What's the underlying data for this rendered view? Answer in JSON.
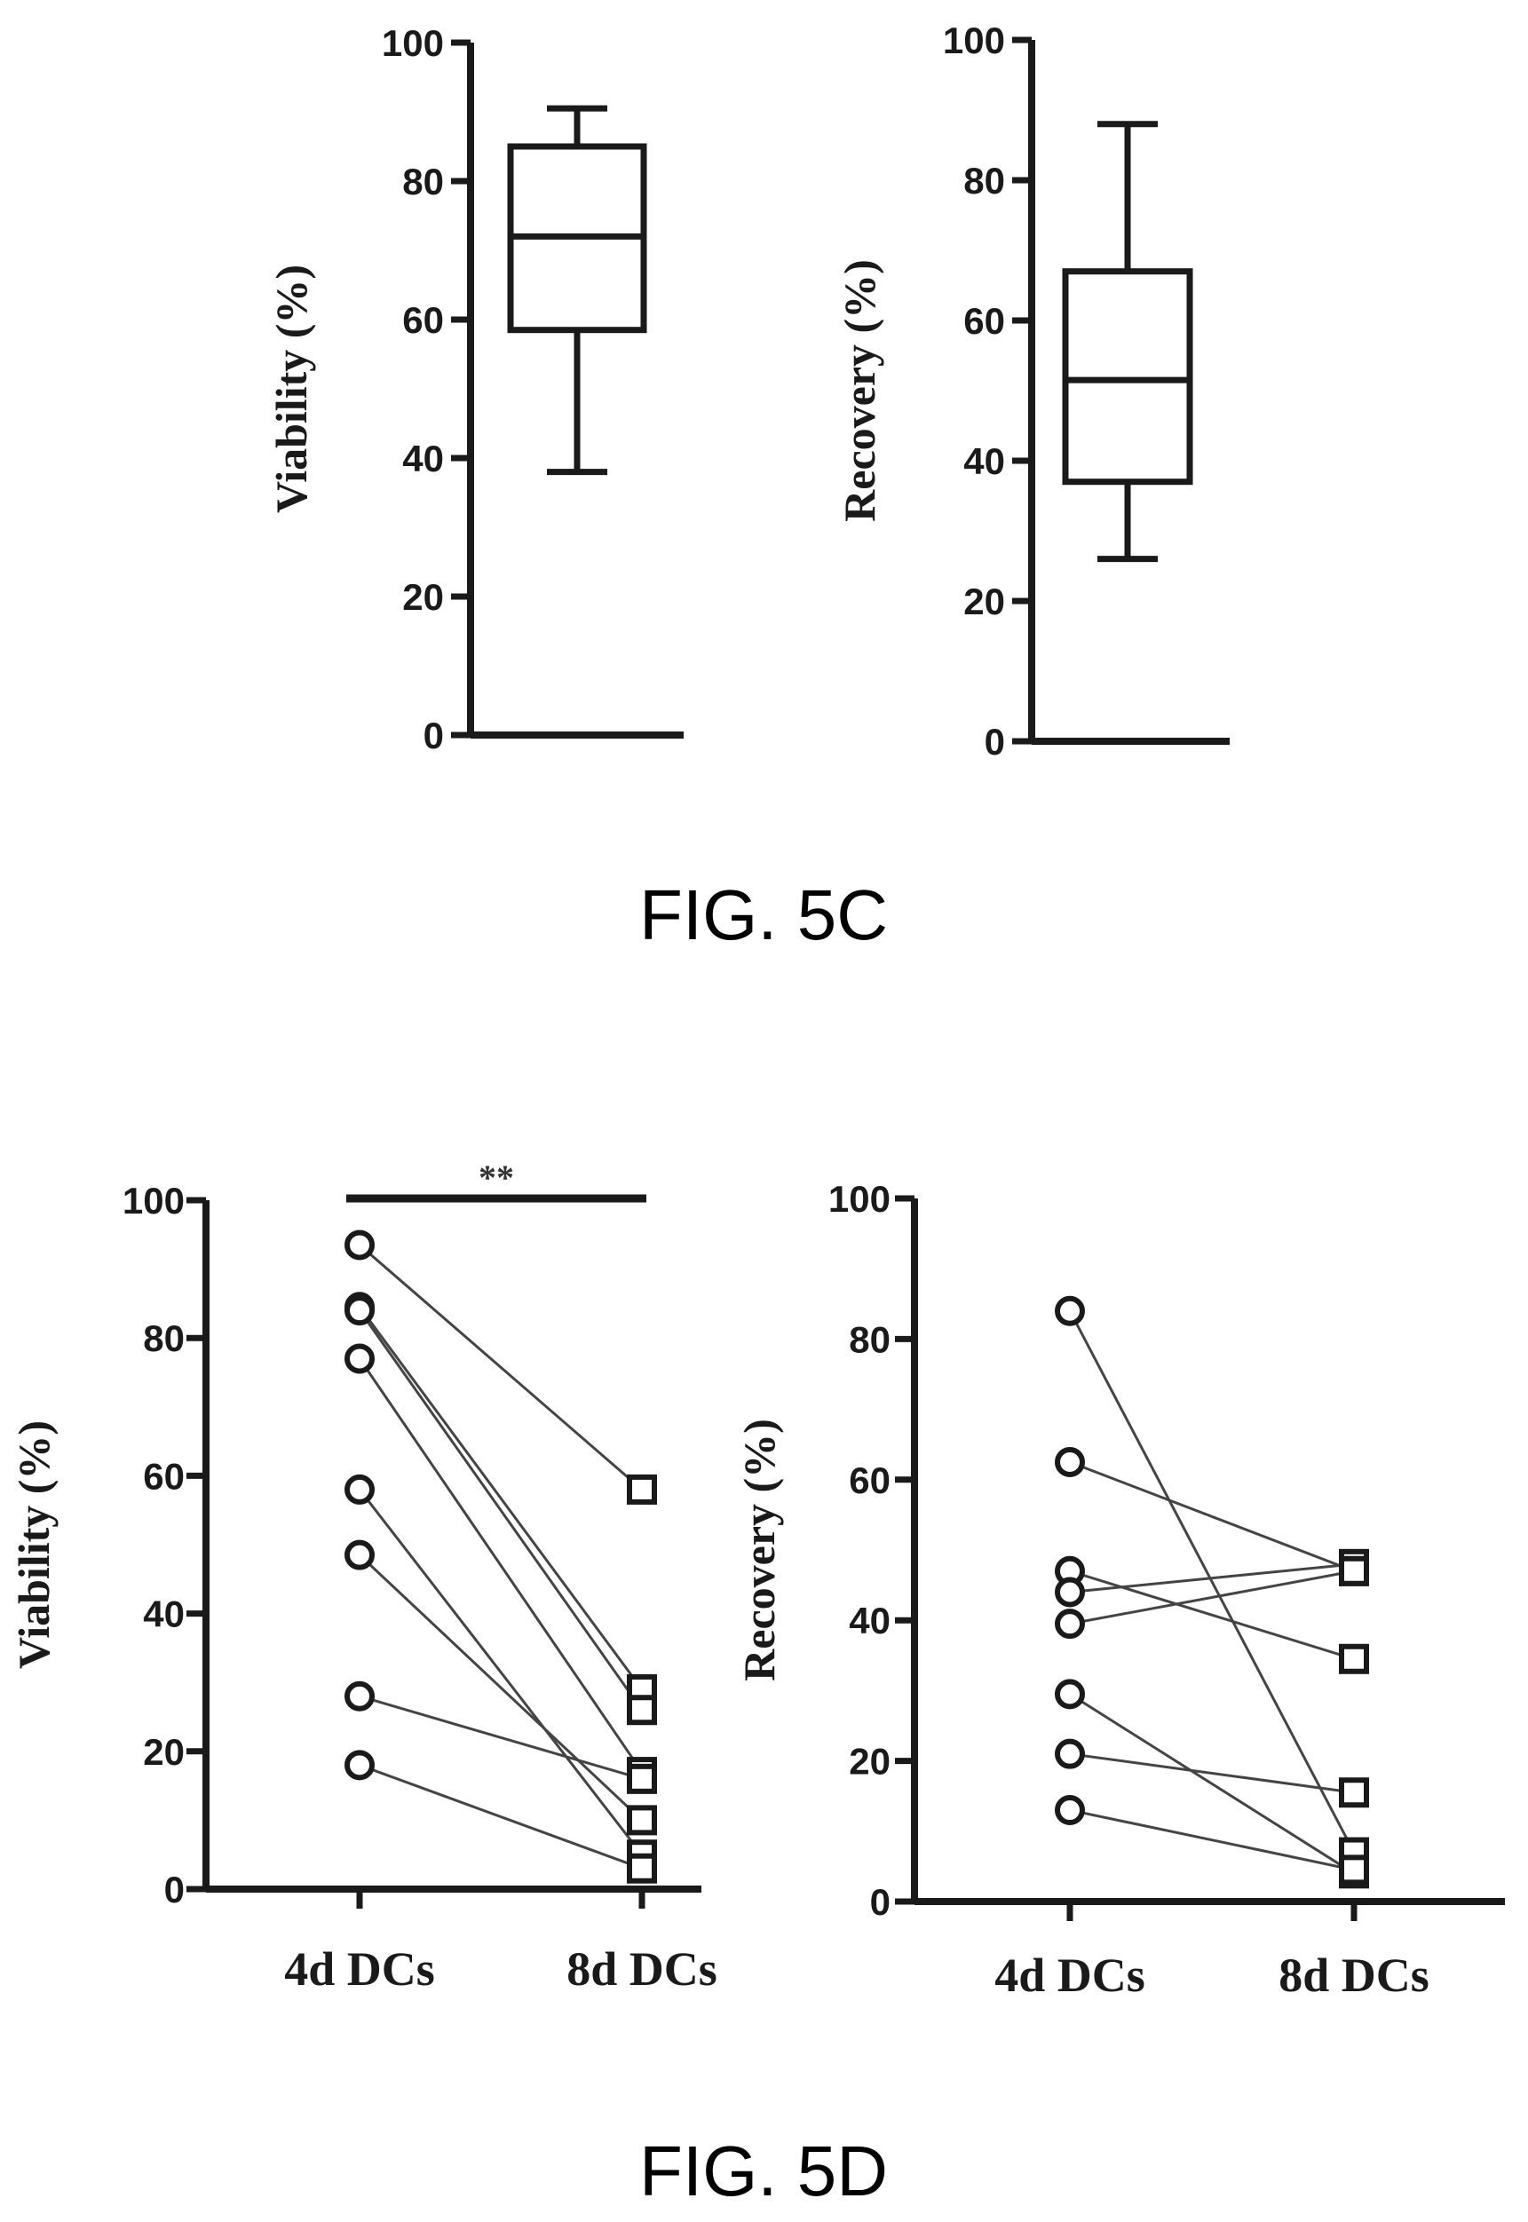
{
  "figures": [
    {
      "caption": "FIG. 5C"
    },
    {
      "caption": "FIG. 5D"
    }
  ],
  "colors": {
    "ink": "#1a1a1a",
    "line": "#444444",
    "background": "#ffffff"
  },
  "chart_data": [
    {
      "type": "box",
      "figure": "FIG. 5C",
      "title": "",
      "xlabel": "",
      "ylabel": "Viability (%)",
      "ylim": [
        0,
        100
      ],
      "yticks": [
        0,
        20,
        40,
        60,
        80,
        100
      ],
      "box": {
        "whisker_low": 38,
        "q1": 58.5,
        "median": 72,
        "q3": 85,
        "whisker_high": 90.5
      }
    },
    {
      "type": "box",
      "figure": "FIG. 5C",
      "title": "",
      "xlabel": "",
      "ylabel": "Recovery (%)",
      "ylim": [
        0,
        100
      ],
      "yticks": [
        0,
        20,
        40,
        60,
        80,
        100
      ],
      "box": {
        "whisker_low": 26,
        "q1": 37,
        "median": 51.5,
        "q3": 67,
        "whisker_high": 88
      }
    },
    {
      "type": "scatter",
      "figure": "FIG. 5D",
      "title": "",
      "xlabel": "",
      "ylabel": "Viability (%)",
      "ylim": [
        0,
        100
      ],
      "yticks": [
        0,
        20,
        40,
        60,
        80,
        100
      ],
      "categories": [
        "4d DCs",
        "8d DCs"
      ],
      "significance": "**",
      "pairs": [
        [
          93.5,
          58
        ],
        [
          84.5,
          29
        ],
        [
          84,
          26
        ],
        [
          77,
          17
        ],
        [
          58,
          5
        ],
        [
          48.5,
          10
        ],
        [
          28,
          16
        ],
        [
          18,
          3
        ]
      ]
    },
    {
      "type": "scatter",
      "figure": "FIG. 5D",
      "title": "",
      "xlabel": "",
      "ylabel": "Recovery (%)",
      "ylim": [
        0,
        100
      ],
      "yticks": [
        0,
        20,
        40,
        60,
        80,
        100
      ],
      "categories": [
        "4d DCs",
        "8d DCs"
      ],
      "pairs": [
        [
          84,
          7
        ],
        [
          62.5,
          47
        ],
        [
          47,
          34.5
        ],
        [
          44,
          48
        ],
        [
          39.5,
          47
        ],
        [
          29.5,
          4
        ],
        [
          21,
          15.5
        ],
        [
          13,
          4.5
        ]
      ]
    }
  ]
}
